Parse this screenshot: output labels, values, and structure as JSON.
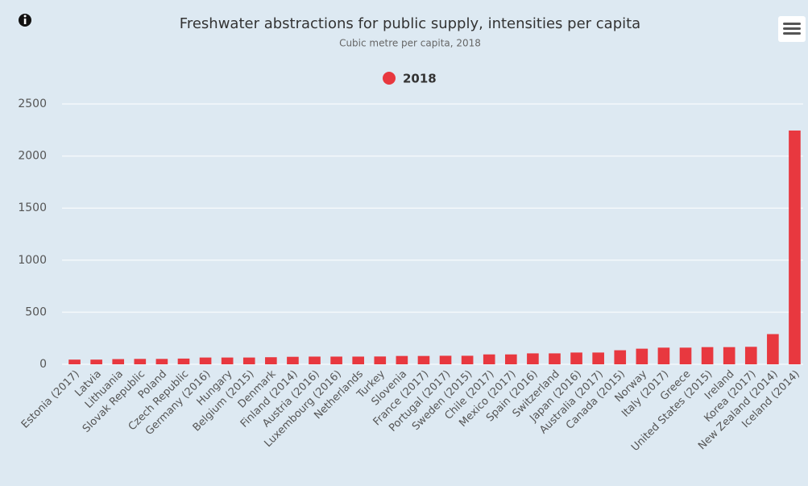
{
  "chart_data": {
    "type": "bar",
    "title": "Freshwater abstractions for public supply, intensities per capita",
    "subtitle": "Cubic metre per capita, 2018",
    "categories": [
      "Estonia (2017)",
      "Latvia",
      "Lithuania",
      "Slovak Republic",
      "Poland",
      "Czech Republic",
      "Germany (2016)",
      "Hungary",
      "Belgium (2015)",
      "Denmark",
      "Finland (2014)",
      "Austria (2016)",
      "Luxembourg (2016)",
      "Netherlands",
      "Turkey",
      "Slovenia",
      "France (2017)",
      "Portugal (2017)",
      "Sweden (2015)",
      "Chile (2017)",
      "Mexico (2017)",
      "Spain (2016)",
      "Switzerland",
      "Japan (2016)",
      "Australia (2017)",
      "Canada (2015)",
      "Norway",
      "Italy (2017)",
      "Greece",
      "United States (2015)",
      "Ireland",
      "Korea (2017)",
      "New Zealand (2014)",
      "Iceland (2014)"
    ],
    "series": [
      {
        "name": "2018",
        "color": "#e8383f",
        "values": [
          45,
          45,
          50,
          52,
          52,
          55,
          65,
          65,
          65,
          68,
          72,
          74,
          74,
          74,
          75,
          80,
          80,
          82,
          82,
          95,
          95,
          105,
          105,
          113,
          113,
          135,
          150,
          160,
          160,
          165,
          165,
          168,
          290,
          2245
        ]
      }
    ],
    "ylim": [
      0,
      2500
    ],
    "yticks": [
      0,
      500,
      1000,
      1500,
      2000,
      2500
    ],
    "grid": true,
    "legend": "top"
  }
}
